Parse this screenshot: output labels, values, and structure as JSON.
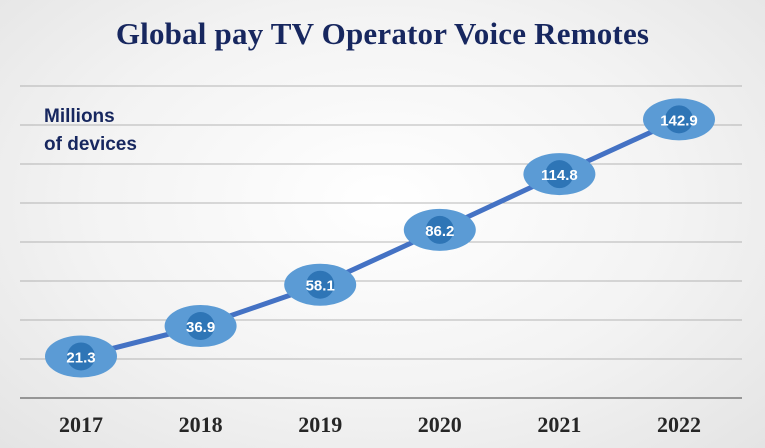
{
  "chart_data": {
    "type": "line",
    "title": "Global pay TV Operator Voice Remotes",
    "unit_label": [
      "Millions",
      "of devices"
    ],
    "categories": [
      "2017",
      "2018",
      "2019",
      "2020",
      "2021",
      "2022"
    ],
    "series": [
      {
        "values": [
          21.3,
          36.9,
          58.1,
          86.2,
          114.8,
          142.9
        ]
      }
    ],
    "value_labels": [
      "21.3",
      "36.9",
      "58.1",
      "86.2",
      "114.8",
      "142.9"
    ],
    "ylim": [
      0,
      160
    ],
    "grid": true,
    "legend": "none",
    "colors": {
      "line": "#4472c4",
      "marker_outer": "#5b9bd5",
      "marker_inner": "#2e75b6",
      "label_text": "#ffffff",
      "title_text": "#17275f",
      "axis_text": "#262626",
      "grid": "#9a9a9a"
    }
  }
}
